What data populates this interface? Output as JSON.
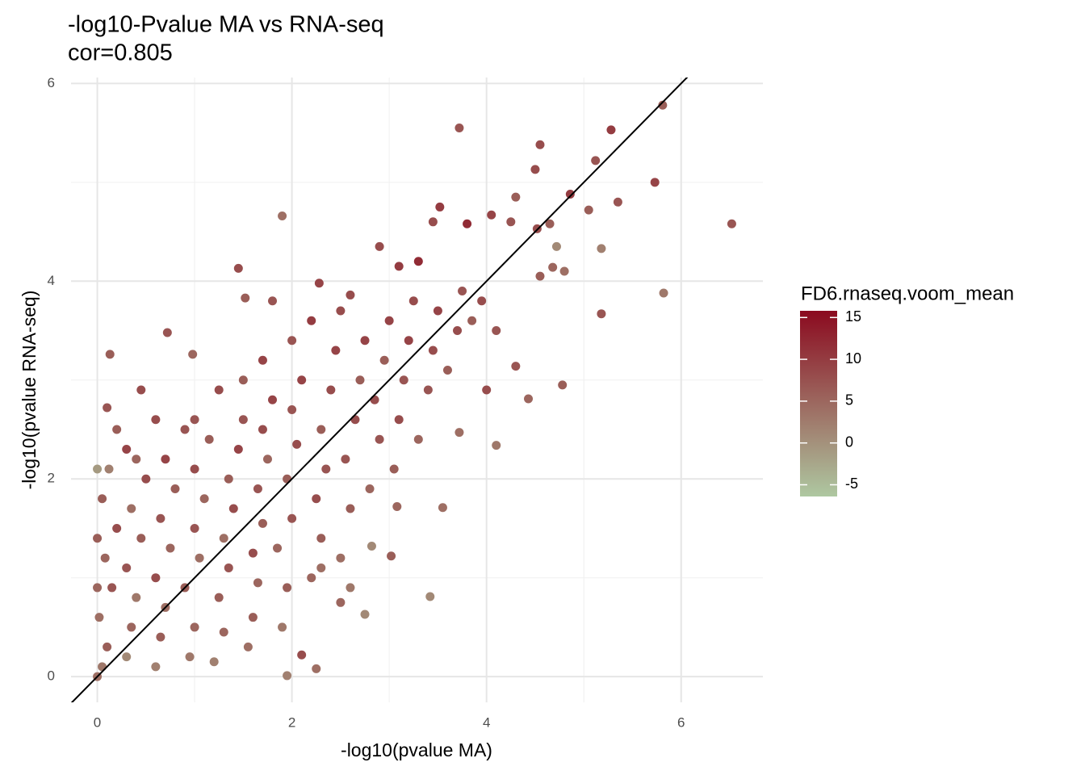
{
  "chart_data": {
    "type": "scatter",
    "title": "-log10-Pvalue MA vs RNA-seq",
    "subtitle": "cor=0.805",
    "x_label": "-log10(pvalue MA)",
    "y_label": "-log10(pvalue RNA-seq)",
    "xlim": [
      -0.27,
      6.84
    ],
    "ylim": [
      -0.26,
      6.06
    ],
    "xticks": [
      0,
      2,
      4,
      6
    ],
    "yticks": [
      0,
      2,
      4,
      6
    ],
    "grid": true,
    "minor_grid": true,
    "ref_line": {
      "slope": 1,
      "intercept": 0,
      "color": "#000000"
    },
    "x": [
      3.72,
      5.28,
      5.81,
      4.55,
      5.12,
      4.5,
      5.73,
      4.86,
      4.3,
      3.52,
      6.52,
      3.8,
      4.05,
      4.25,
      4.52,
      4.65,
      4.72,
      5.18,
      5.35,
      5.05,
      3.45,
      1.9,
      5.82,
      5.18,
      1.45,
      0.72,
      0.13,
      0.98,
      0.1,
      0.45,
      3.72,
      4.1,
      3.55,
      3.42,
      4.0,
      4.43,
      4.78,
      4.3,
      2.75,
      2.1,
      1.95,
      2.25,
      3.02,
      2.82,
      3.08,
      1.52,
      1.8,
      2.6,
      2.28,
      4.8,
      4.68,
      4.55,
      0.05,
      0.1,
      0.02,
      0.15,
      0.08,
      0.2,
      0.05,
      0.12,
      0.3,
      0.35,
      0.4,
      0.3,
      0.45,
      0.35,
      0.5,
      0.3,
      0.6,
      0.65,
      0.7,
      0.6,
      0.75,
      0.65,
      0.8,
      0.7,
      0.9,
      0.95,
      1.0,
      0.9,
      1.05,
      1.0,
      1.1,
      1.0,
      1.15,
      1.2,
      1.3,
      1.25,
      1.35,
      1.3,
      1.4,
      1.35,
      1.45,
      1.5,
      1.55,
      1.6,
      1.65,
      1.6,
      1.7,
      1.65,
      1.75,
      1.7,
      1.8,
      1.9,
      1.95,
      1.85,
      2.0,
      1.95,
      2.05,
      2.0,
      2.1,
      2.2,
      2.3,
      2.25,
      2.35,
      2.3,
      2.4,
      2.45,
      2.5,
      2.6,
      2.55,
      2.65,
      2.7,
      2.75,
      2.8,
      2.9,
      2.85,
      2.95,
      3.0,
      3.05,
      3.1,
      3.15,
      3.2,
      3.25,
      3.3,
      3.4,
      3.45,
      3.5,
      3.6,
      3.7,
      3.75,
      3.85,
      3.95,
      4.1,
      2.9,
      3.1,
      3.3,
      2.3,
      2.5,
      2.6,
      1.0,
      0.6,
      0.2,
      0.4,
      1.25,
      1.5,
      1.7,
      2.0,
      2.2,
      2.5,
      0.0,
      0.0,
      0.0,
      0.0
    ],
    "values": [
      5.55,
      5.53,
      5.78,
      5.38,
      5.22,
      5.13,
      5.0,
      4.88,
      4.85,
      4.75,
      4.58,
      4.58,
      4.67,
      4.6,
      4.53,
      4.58,
      4.35,
      4.33,
      4.8,
      4.72,
      4.6,
      4.66,
      3.88,
      3.67,
      4.13,
      3.48,
      3.26,
      3.26,
      2.72,
      2.9,
      2.47,
      2.34,
      1.71,
      0.81,
      2.9,
      2.81,
      2.95,
      3.14,
      0.63,
      0.22,
      0.01,
      0.08,
      1.22,
      1.32,
      1.72,
      3.83,
      3.8,
      3.86,
      3.98,
      4.1,
      4.14,
      4.05,
      0.1,
      0.3,
      0.6,
      0.9,
      1.2,
      1.5,
      1.8,
      2.1,
      0.2,
      0.5,
      0.8,
      1.1,
      1.4,
      1.7,
      2.0,
      2.3,
      0.1,
      0.4,
      0.7,
      1.0,
      1.3,
      1.6,
      1.9,
      2.2,
      2.5,
      0.2,
      0.5,
      0.9,
      1.2,
      1.5,
      1.8,
      2.1,
      2.4,
      0.15,
      0.45,
      0.8,
      1.1,
      1.4,
      1.7,
      2.0,
      2.3,
      2.6,
      0.3,
      0.6,
      0.95,
      1.25,
      1.55,
      1.9,
      2.2,
      2.5,
      2.8,
      0.5,
      0.9,
      1.3,
      1.6,
      2.0,
      2.35,
      2.7,
      3.0,
      1.0,
      1.4,
      1.8,
      2.1,
      2.5,
      2.9,
      3.3,
      1.2,
      1.7,
      2.2,
      2.6,
      3.0,
      3.4,
      1.9,
      2.4,
      2.8,
      3.2,
      3.6,
      2.1,
      2.6,
      3.0,
      3.4,
      3.8,
      2.4,
      2.9,
      3.3,
      3.7,
      3.1,
      3.5,
      3.9,
      3.6,
      3.8,
      3.5,
      4.35,
      4.15,
      4.2,
      1.1,
      0.75,
      0.9,
      2.6,
      2.6,
      2.5,
      2.2,
      2.9,
      3.0,
      3.2,
      3.4,
      3.6,
      3.7,
      0.0,
      0.9,
      1.4,
      2.1
    ],
    "color_values": [
      7,
      10,
      6,
      8,
      7,
      8,
      9,
      10,
      6,
      10,
      7,
      12,
      9,
      7,
      8,
      6,
      1,
      2,
      7,
      6,
      8,
      4,
      3,
      7,
      8,
      7,
      6,
      5,
      7,
      8,
      4,
      3,
      4,
      1,
      8,
      5,
      6,
      7,
      1,
      8,
      2,
      4,
      6,
      1,
      5,
      6,
      7,
      8,
      9,
      4,
      5,
      6,
      3,
      6,
      4,
      7,
      5,
      8,
      6,
      2,
      1,
      5,
      3,
      7,
      6,
      4,
      8,
      9,
      2,
      6,
      4,
      8,
      5,
      7,
      6,
      9,
      7,
      3,
      5,
      6,
      4,
      7,
      5,
      8,
      6,
      2,
      5,
      6,
      7,
      4,
      8,
      6,
      9,
      7,
      4,
      6,
      5,
      8,
      6,
      7,
      5,
      8,
      9,
      3,
      6,
      5,
      7,
      6,
      8,
      7,
      9,
      5,
      6,
      8,
      7,
      6,
      8,
      9,
      4,
      6,
      7,
      8,
      6,
      9,
      5,
      7,
      8,
      6,
      9,
      6,
      8,
      7,
      9,
      8,
      5,
      7,
      8,
      9,
      6,
      8,
      7,
      6,
      8,
      7,
      8,
      10,
      12,
      4,
      5,
      3,
      7,
      8,
      6,
      5,
      8,
      6,
      9,
      7,
      10,
      8,
      4,
      5,
      6,
      -1
    ],
    "colorbar": {
      "title": "FD6.rnaseq.voom_mean",
      "lim": [
        -6.4,
        15.8
      ],
      "ticks": [
        -5,
        0,
        5,
        10,
        15
      ],
      "low": "#aec8a1",
      "high": "#8b0a1f"
    }
  }
}
